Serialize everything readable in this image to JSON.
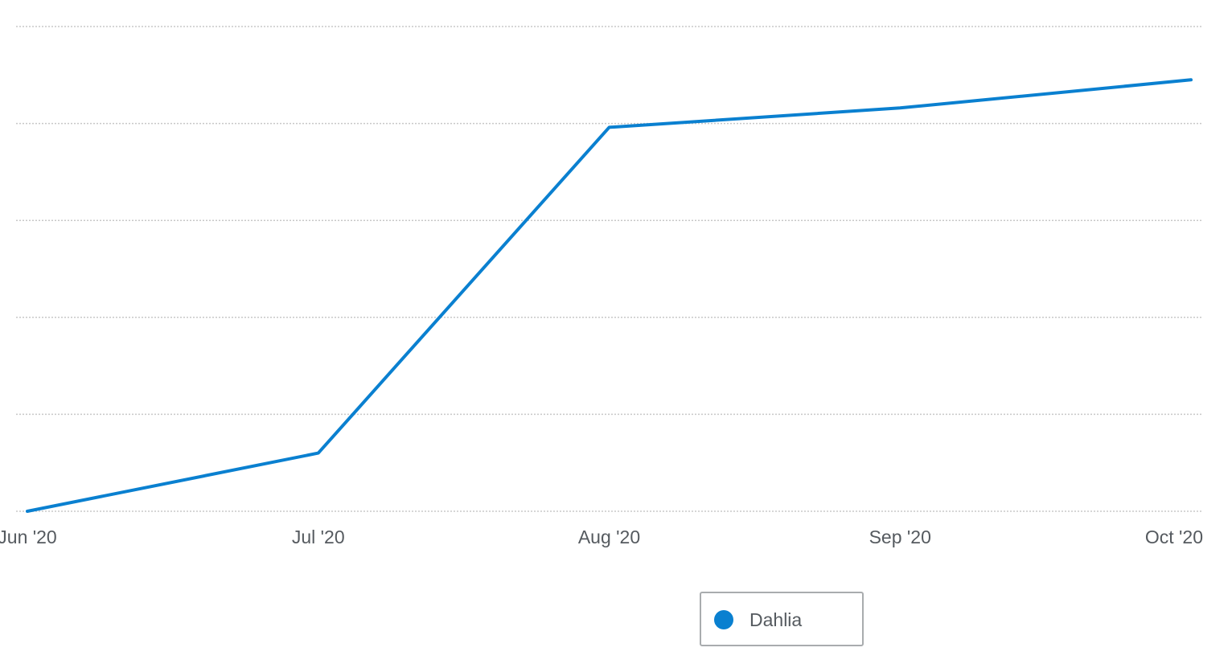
{
  "chart_data": {
    "type": "line",
    "title": "",
    "xlabel": "",
    "ylabel": "",
    "x": [
      "Jun '20",
      "Jul '20",
      "Aug '20",
      "Sep '20",
      "Oct '20"
    ],
    "ylim": [
      0,
      5
    ],
    "y_ticks": [
      0,
      1,
      2,
      3,
      4,
      5
    ],
    "grid": true,
    "legend_position": "bottom",
    "series": [
      {
        "name": "Dahlia",
        "color": "#0a80d0",
        "values": [
          0,
          0.6,
          3.96,
          4.16,
          4.45
        ]
      }
    ]
  }
}
